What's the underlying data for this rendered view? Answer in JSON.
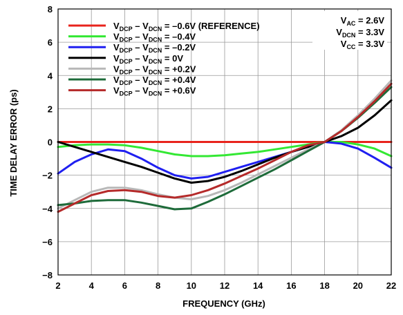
{
  "chart_data": {
    "type": "line",
    "xlabel": "FREQUENCY (GHz)",
    "ylabel": "TIME DELAY ERROR (ps)",
    "xlim": [
      2,
      22
    ],
    "ylim": [
      -8,
      8
    ],
    "xticks": [
      2,
      4,
      6,
      8,
      10,
      12,
      14,
      16,
      18,
      20,
      22
    ],
    "yticks": [
      -8,
      -6,
      -4,
      -2,
      0,
      2,
      4,
      6,
      8
    ],
    "grid": true,
    "legend_position": "top-left",
    "annotations": [
      {
        "main": "V",
        "sub": "AC",
        "rest": " = 2.6V"
      },
      {
        "main": "V",
        "sub": "DCN",
        "rest": " = 3.3V"
      },
      {
        "main": "V",
        "sub": "CC",
        "rest": " = 3.3V"
      }
    ],
    "series": [
      {
        "name": "VDCP – VDCN = –0.6V (REFERENCE)",
        "parts": [
          "V",
          "DCP",
          " – V",
          "DCN",
          " = –0.6V (REFERENCE)"
        ],
        "color": "#e8231c",
        "x": [
          2,
          4,
          6,
          8,
          10,
          12,
          14,
          16,
          18,
          20,
          22
        ],
        "y": [
          0,
          0,
          0,
          0,
          0,
          0,
          0,
          0,
          0,
          0,
          0
        ]
      },
      {
        "name": "VDCP – VDCN = –0.4V",
        "parts": [
          "V",
          "DCP",
          " – V",
          "DCN",
          " = –0.4V"
        ],
        "color": "#33e833",
        "x": [
          2,
          3,
          4,
          5,
          6,
          7,
          8,
          9,
          10,
          11,
          12,
          13,
          14,
          15,
          16,
          17,
          18,
          19,
          20,
          21,
          22
        ],
        "y": [
          -0.3,
          -0.2,
          -0.15,
          -0.15,
          -0.2,
          -0.35,
          -0.55,
          -0.75,
          -0.85,
          -0.85,
          -0.8,
          -0.7,
          -0.6,
          -0.45,
          -0.3,
          -0.15,
          0,
          0.0,
          -0.15,
          -0.4,
          -0.85
        ]
      },
      {
        "name": "VDCP – VDCN = –0.2V",
        "parts": [
          "V",
          "DCP",
          " – V",
          "DCN",
          " = –0.2V"
        ],
        "color": "#1f1ff0",
        "x": [
          2,
          3,
          4,
          5,
          6,
          7,
          8,
          9,
          10,
          11,
          12,
          13,
          14,
          15,
          16,
          17,
          18,
          19,
          20,
          21,
          22
        ],
        "y": [
          -1.9,
          -1.2,
          -0.75,
          -0.45,
          -0.55,
          -1.0,
          -1.55,
          -2.0,
          -2.2,
          -2.1,
          -1.8,
          -1.5,
          -1.2,
          -0.9,
          -0.6,
          -0.3,
          0,
          -0.1,
          -0.4,
          -0.95,
          -1.55
        ]
      },
      {
        "name": "VDCP – VDCN = 0V",
        "parts": [
          "V",
          "DCP",
          " – V",
          "DCN",
          " = 0V"
        ],
        "color": "#000000",
        "x": [
          2,
          3,
          4,
          5,
          6,
          7,
          8,
          9,
          10,
          11,
          12,
          13,
          14,
          15,
          16,
          17,
          18,
          19,
          20,
          21,
          22
        ],
        "y": [
          0,
          -0.3,
          -0.6,
          -0.9,
          -1.2,
          -1.5,
          -1.85,
          -2.2,
          -2.45,
          -2.35,
          -2.1,
          -1.75,
          -1.35,
          -0.95,
          -0.6,
          -0.3,
          0,
          0.35,
          0.85,
          1.6,
          2.5
        ]
      },
      {
        "name": "VDCP – VDCN = +0.2V",
        "parts": [
          "V",
          "DCP",
          " – V",
          "DCN",
          " = +0.2V"
        ],
        "color": "#b8b8b8",
        "x": [
          2,
          3,
          4,
          5,
          6,
          7,
          8,
          9,
          10,
          11,
          12,
          13,
          14,
          15,
          16,
          17,
          18,
          19,
          20,
          21,
          22
        ],
        "y": [
          -4.0,
          -3.5,
          -3.0,
          -2.75,
          -2.75,
          -2.9,
          -3.15,
          -3.35,
          -3.45,
          -3.25,
          -2.9,
          -2.45,
          -1.95,
          -1.45,
          -0.95,
          -0.45,
          0,
          0.7,
          1.6,
          2.6,
          3.7
        ]
      },
      {
        "name": "VDCP – VDCN = +0.4V",
        "parts": [
          "V",
          "DCP",
          " – V",
          "DCN",
          " = +0.4V"
        ],
        "color": "#1e6b3a",
        "x": [
          2,
          3,
          4,
          5,
          6,
          7,
          8,
          9,
          10,
          11,
          12,
          13,
          14,
          15,
          16,
          17,
          18,
          19,
          20,
          21,
          22
        ],
        "y": [
          -3.8,
          -3.7,
          -3.55,
          -3.5,
          -3.5,
          -3.65,
          -3.85,
          -4.05,
          -4.0,
          -3.6,
          -3.15,
          -2.65,
          -2.15,
          -1.65,
          -1.1,
          -0.55,
          0,
          0.65,
          1.45,
          2.35,
          3.3
        ]
      },
      {
        "name": "VDCP – VDCN = +0.6V",
        "parts": [
          "V",
          "DCP",
          " – V",
          "DCN",
          " = +0.6V"
        ],
        "color": "#b52a2a",
        "x": [
          2,
          3,
          4,
          5,
          6,
          7,
          8,
          9,
          10,
          11,
          12,
          13,
          14,
          15,
          16,
          17,
          18,
          19,
          20,
          21,
          22
        ],
        "y": [
          -4.2,
          -3.7,
          -3.2,
          -2.95,
          -2.9,
          -3.0,
          -3.25,
          -3.35,
          -3.2,
          -2.9,
          -2.5,
          -2.05,
          -1.6,
          -1.1,
          -0.6,
          -0.2,
          0,
          0.65,
          1.5,
          2.45,
          3.5
        ]
      }
    ]
  }
}
